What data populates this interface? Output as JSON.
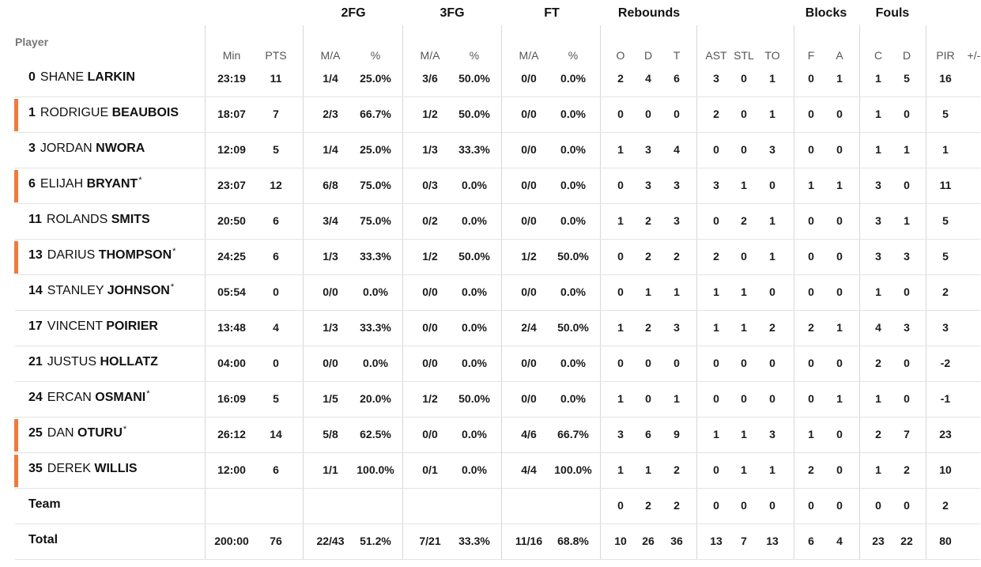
{
  "groups": [
    "2FG",
    "3FG",
    "FT",
    "Rebounds",
    "Blocks",
    "Fouls"
  ],
  "player_header": "Player",
  "columns": [
    "Min",
    "PTS",
    "M/A",
    "%",
    "M/A",
    "%",
    "M/A",
    "%",
    "O",
    "D",
    "T",
    "AST",
    "STL",
    "TO",
    "F",
    "A",
    "C",
    "D",
    "PIR",
    "+/-"
  ],
  "players": [
    {
      "num": "0",
      "first": "SHANE",
      "last": "LARKIN",
      "star": false,
      "marked": false,
      "stats": [
        "23:19",
        "11",
        "1/4",
        "25.0%",
        "3/6",
        "50.0%",
        "0/0",
        "0.0%",
        "2",
        "4",
        "6",
        "3",
        "0",
        "1",
        "0",
        "1",
        "1",
        "5",
        "16",
        ""
      ]
    },
    {
      "num": "1",
      "first": "RODRIGUE",
      "last": "BEAUBOIS",
      "star": false,
      "marked": true,
      "stats": [
        "18:07",
        "7",
        "2/3",
        "66.7%",
        "1/2",
        "50.0%",
        "0/0",
        "0.0%",
        "0",
        "0",
        "0",
        "2",
        "0",
        "1",
        "0",
        "0",
        "1",
        "0",
        "5",
        ""
      ]
    },
    {
      "num": "3",
      "first": "JORDAN",
      "last": "NWORA",
      "star": false,
      "marked": false,
      "stats": [
        "12:09",
        "5",
        "1/4",
        "25.0%",
        "1/3",
        "33.3%",
        "0/0",
        "0.0%",
        "1",
        "3",
        "4",
        "0",
        "0",
        "3",
        "0",
        "0",
        "1",
        "1",
        "1",
        ""
      ]
    },
    {
      "num": "6",
      "first": "ELIJAH",
      "last": "BRYANT",
      "star": true,
      "marked": true,
      "stats": [
        "23:07",
        "12",
        "6/8",
        "75.0%",
        "0/3",
        "0.0%",
        "0/0",
        "0.0%",
        "0",
        "3",
        "3",
        "3",
        "1",
        "0",
        "1",
        "1",
        "3",
        "0",
        "11",
        ""
      ]
    },
    {
      "num": "11",
      "first": "ROLANDS",
      "last": "SMITS",
      "star": false,
      "marked": false,
      "stats": [
        "20:50",
        "6",
        "3/4",
        "75.0%",
        "0/2",
        "0.0%",
        "0/0",
        "0.0%",
        "1",
        "2",
        "3",
        "0",
        "2",
        "1",
        "0",
        "0",
        "3",
        "1",
        "5",
        ""
      ]
    },
    {
      "num": "13",
      "first": "DARIUS",
      "last": "THOMPSON",
      "star": true,
      "marked": true,
      "stats": [
        "24:25",
        "6",
        "1/3",
        "33.3%",
        "1/2",
        "50.0%",
        "1/2",
        "50.0%",
        "0",
        "2",
        "2",
        "2",
        "0",
        "1",
        "0",
        "0",
        "3",
        "3",
        "5",
        ""
      ]
    },
    {
      "num": "14",
      "first": "STANLEY",
      "last": "JOHNSON",
      "star": true,
      "marked": false,
      "stats": [
        "05:54",
        "0",
        "0/0",
        "0.0%",
        "0/0",
        "0.0%",
        "0/0",
        "0.0%",
        "0",
        "1",
        "1",
        "1",
        "1",
        "0",
        "0",
        "0",
        "1",
        "0",
        "2",
        ""
      ]
    },
    {
      "num": "17",
      "first": "VINCENT",
      "last": "POIRIER",
      "star": false,
      "marked": false,
      "stats": [
        "13:48",
        "4",
        "1/3",
        "33.3%",
        "0/0",
        "0.0%",
        "2/4",
        "50.0%",
        "1",
        "2",
        "3",
        "1",
        "1",
        "2",
        "2",
        "1",
        "4",
        "3",
        "3",
        ""
      ]
    },
    {
      "num": "21",
      "first": "JUSTUS",
      "last": "HOLLATZ",
      "star": false,
      "marked": false,
      "stats": [
        "04:00",
        "0",
        "0/0",
        "0.0%",
        "0/0",
        "0.0%",
        "0/0",
        "0.0%",
        "0",
        "0",
        "0",
        "0",
        "0",
        "0",
        "0",
        "0",
        "2",
        "0",
        "-2",
        ""
      ]
    },
    {
      "num": "24",
      "first": "ERCAN",
      "last": "OSMANI",
      "star": true,
      "marked": false,
      "stats": [
        "16:09",
        "5",
        "1/5",
        "20.0%",
        "1/2",
        "50.0%",
        "0/0",
        "0.0%",
        "1",
        "0",
        "1",
        "0",
        "0",
        "0",
        "0",
        "1",
        "1",
        "0",
        "-1",
        ""
      ]
    },
    {
      "num": "25",
      "first": "DAN",
      "last": "OTURU",
      "star": true,
      "marked": true,
      "stats": [
        "26:12",
        "14",
        "5/8",
        "62.5%",
        "0/0",
        "0.0%",
        "4/6",
        "66.7%",
        "3",
        "6",
        "9",
        "1",
        "1",
        "3",
        "1",
        "0",
        "2",
        "7",
        "23",
        ""
      ]
    },
    {
      "num": "35",
      "first": "DEREK",
      "last": "WILLIS",
      "star": false,
      "marked": true,
      "stats": [
        "12:00",
        "6",
        "1/1",
        "100.0%",
        "0/1",
        "0.0%",
        "4/4",
        "100.0%",
        "1",
        "1",
        "2",
        "0",
        "1",
        "1",
        "2",
        "0",
        "1",
        "2",
        "10",
        ""
      ]
    }
  ],
  "team": {
    "label": "Team",
    "stats": [
      "",
      "",
      "",
      "",
      "",
      "",
      "",
      "",
      "0",
      "2",
      "2",
      "0",
      "0",
      "0",
      "0",
      "0",
      "0",
      "0",
      "2",
      ""
    ]
  },
  "total": {
    "label": "Total",
    "stats": [
      "200:00",
      "76",
      "22/43",
      "51.2%",
      "7/21",
      "33.3%",
      "11/16",
      "68.8%",
      "10",
      "26",
      "36",
      "13",
      "7",
      "13",
      "6",
      "4",
      "23",
      "22",
      "80",
      ""
    ]
  },
  "colors": {
    "starter_marker": "#f07a3a",
    "divider": "#d8d8d8",
    "row_line": "#e3e3e3"
  }
}
